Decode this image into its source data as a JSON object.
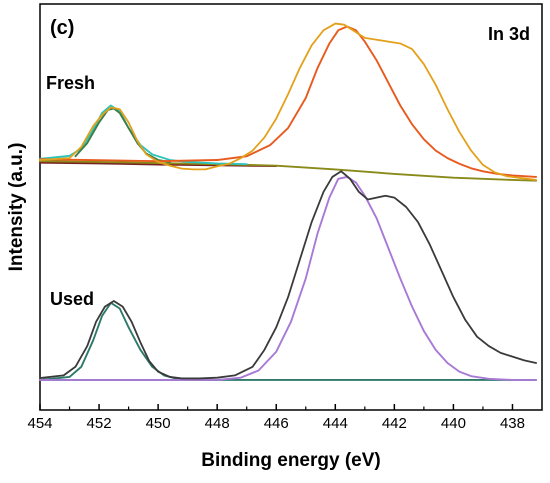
{
  "chart_data": {
    "type": "line",
    "panel_label": "(c)",
    "corner_label": "In 3d",
    "xlabel": "Binding energy (eV)",
    "ylabel": "Intensity (a.u.)",
    "xlim": [
      454,
      437
    ],
    "ylim": [
      -0.8,
      10
    ],
    "x_ticks": [
      454,
      452,
      450,
      448,
      446,
      444,
      442,
      440,
      438
    ],
    "x_reversed": true,
    "grid": false,
    "legend": "none",
    "groups": [
      {
        "label": "Fresh",
        "series": [
          {
            "role": "raw",
            "color": "#e3a11b",
            "x": [
              454,
              453.0,
              452.6,
              452.2,
              451.9,
              451.6,
              451.3,
              451.0,
              450.7,
              450.4,
              450.0,
              449.6,
              449.2,
              448.8,
              448.4,
              448.0,
              447.6,
              447.2,
              446.8,
              446.4,
              446.0,
              445.6,
              445.2,
              444.8,
              444.4,
              444.0,
              443.7,
              443.4,
              443.0,
              442.6,
              442.2,
              441.8,
              441.4,
              441.0,
              440.6,
              440.2,
              439.8,
              439.4,
              439.0,
              438.6,
              438.2,
              437.8,
              437.2
            ],
            "y": [
              5.85,
              5.9,
              6.2,
              6.75,
              7.05,
              7.25,
              7.2,
              6.85,
              6.35,
              6.0,
              5.8,
              5.7,
              5.62,
              5.6,
              5.6,
              5.68,
              5.75,
              5.9,
              6.1,
              6.45,
              6.95,
              7.6,
              8.3,
              8.9,
              9.3,
              9.48,
              9.45,
              9.3,
              9.1,
              9.05,
              9.0,
              8.95,
              8.8,
              8.4,
              7.85,
              7.2,
              6.6,
              6.1,
              5.72,
              5.52,
              5.42,
              5.38,
              5.32
            ]
          },
          {
            "role": "fit-peak-1",
            "color": "#2ec4bd",
            "x": [
              454,
              453.0,
              452.6,
              452.2,
              451.9,
              451.6,
              451.3,
              451.0,
              450.6,
              450.2,
              449.6,
              449.0,
              448.0,
              447.0
            ],
            "y": [
              5.88,
              5.96,
              6.15,
              6.65,
              7.1,
              7.3,
              7.15,
              6.7,
              6.25,
              6.0,
              5.85,
              5.8,
              5.76,
              5.74
            ]
          },
          {
            "role": "fit-envelope-1",
            "color": "#3e7f49",
            "x": [
              452.8,
              452.4,
              452.0,
              451.7,
              451.5,
              451.3,
              451.0,
              450.7,
              450.4,
              450.0,
              449.6
            ],
            "y": [
              5.95,
              6.3,
              6.85,
              7.18,
              7.22,
              7.1,
              6.7,
              6.3,
              6.02,
              5.85,
              5.8
            ]
          },
          {
            "role": "fit-peak-2",
            "color": "#e85a1e",
            "x": [
              454,
              450.0,
              448.0,
              447.0,
              446.2,
              445.6,
              445.0,
              444.6,
              444.2,
              443.9,
              443.6,
              443.3,
              443.0,
              442.6,
              442.2,
              441.8,
              441.4,
              441.0,
              440.6,
              440.2,
              439.8,
              439.4,
              439.0,
              438.5,
              438.0,
              437.2
            ],
            "y": [
              5.87,
              5.82,
              5.85,
              5.95,
              6.25,
              6.7,
              7.5,
              8.3,
              8.95,
              9.3,
              9.4,
              9.3,
              9.0,
              8.5,
              7.9,
              7.3,
              6.8,
              6.4,
              6.1,
              5.9,
              5.75,
              5.63,
              5.55,
              5.48,
              5.44,
              5.4
            ]
          },
          {
            "role": "background",
            "color": "#8a8a1a",
            "x": [
              454,
              452,
              450,
              448,
              446,
              444,
              442,
              440,
              438,
              437.2
            ],
            "y": [
              5.82,
              5.8,
              5.77,
              5.74,
              5.7,
              5.6,
              5.48,
              5.38,
              5.32,
              5.3
            ]
          },
          {
            "role": "background-low",
            "color": "#7a2020",
            "x": [
              454,
              452,
              450,
              448,
              446
            ],
            "y": [
              5.78,
              5.76,
              5.73,
              5.71,
              5.69
            ]
          }
        ]
      },
      {
        "label": "Used",
        "series": [
          {
            "role": "raw",
            "color": "#3a3a3a",
            "x": [
              454,
              453.2,
              452.8,
              452.4,
              452.1,
              451.8,
              451.5,
              451.2,
              450.9,
              450.6,
              450.3,
              450.0,
              449.6,
              449.2,
              448.6,
              448.0,
              447.4,
              446.8,
              446.4,
              446.0,
              445.6,
              445.2,
              444.8,
              444.4,
              444.1,
              443.8,
              443.5,
              443.2,
              442.9,
              442.6,
              442.3,
              442.0,
              441.6,
              441.2,
              440.8,
              440.4,
              440.0,
              439.6,
              439.2,
              438.8,
              438.4,
              438.0,
              437.6,
              437.2
            ],
            "y": [
              0.05,
              0.12,
              0.35,
              0.9,
              1.55,
              1.95,
              2.1,
              1.95,
              1.55,
              1.0,
              0.5,
              0.22,
              0.08,
              0.04,
              0.04,
              0.06,
              0.12,
              0.35,
              0.8,
              1.4,
              2.2,
              3.2,
              4.2,
              5.0,
              5.4,
              5.55,
              5.35,
              5.0,
              4.8,
              4.85,
              4.9,
              4.85,
              4.6,
              4.2,
              3.6,
              2.9,
              2.2,
              1.6,
              1.15,
              0.9,
              0.72,
              0.62,
              0.52,
              0.45
            ]
          },
          {
            "role": "fit-peak-1",
            "color": "#2d7a6b",
            "x": [
              454,
              453.0,
              452.6,
              452.2,
              451.9,
              451.6,
              451.3,
              451.0,
              450.6,
              450.2,
              449.8,
              449.4,
              449.0,
              448.0
            ],
            "y": [
              0.0,
              0.08,
              0.35,
              1.05,
              1.7,
              2.05,
              1.9,
              1.4,
              0.8,
              0.35,
              0.12,
              0.04,
              0.01,
              0.0
            ]
          },
          {
            "role": "fit-peak-2",
            "color": "#a979d6",
            "x": [
              454,
              448.0,
              447.2,
              446.6,
              446.0,
              445.5,
              445.0,
              444.6,
              444.2,
              443.9,
              443.6,
              443.3,
              443.0,
              442.6,
              442.2,
              441.8,
              441.4,
              441.0,
              440.6,
              440.2,
              439.8,
              439.4,
              438.8,
              438.0,
              437.2
            ],
            "y": [
              0.0,
              0.0,
              0.06,
              0.25,
              0.75,
              1.55,
              2.7,
              3.9,
              4.85,
              5.35,
              5.4,
              5.25,
              4.9,
              4.3,
              3.5,
              2.7,
              1.95,
              1.3,
              0.8,
              0.45,
              0.22,
              0.1,
              0.03,
              0.0,
              0.0
            ]
          },
          {
            "role": "background",
            "color": "#2d7a6b",
            "x": [
              454,
              448,
              444,
              440,
              437.2
            ],
            "y": [
              0.0,
              0.0,
              0.0,
              0.0,
              0.0
            ]
          }
        ]
      }
    ]
  }
}
